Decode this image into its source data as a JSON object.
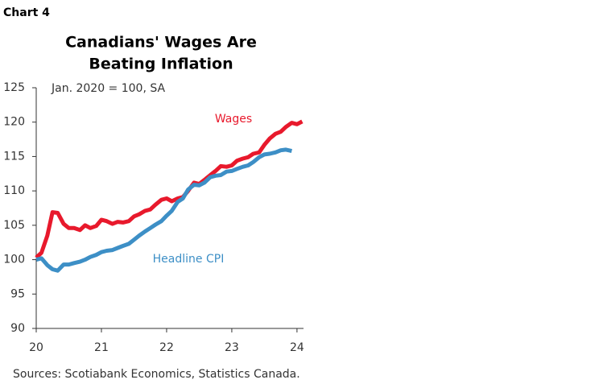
{
  "chart_label": "Chart 4",
  "chart_data": {
    "type": "line",
    "title": [
      "Canadians' Wages Are",
      "Beating Inflation"
    ],
    "subtitle": "Jan. 2020 = 100, SA",
    "source": "Sources: Scotiabank Economics, Statistics Canada.",
    "x": [
      20,
      20.08,
      20.17,
      20.25,
      20.33,
      20.42,
      20.5,
      20.58,
      20.67,
      20.75,
      20.83,
      20.92,
      21,
      21.08,
      21.17,
      21.25,
      21.33,
      21.42,
      21.5,
      21.58,
      21.67,
      21.75,
      21.83,
      21.92,
      22,
      22.08,
      22.17,
      22.25,
      22.33,
      22.42,
      22.5,
      22.58,
      22.67,
      22.75,
      22.83,
      22.92,
      23,
      23.08,
      23.17,
      23.25,
      23.33,
      23.42,
      23.5,
      23.58,
      23.67,
      23.75,
      23.83,
      23.92,
      24,
      24.08
    ],
    "series": [
      {
        "name": "Wages",
        "color": "#e8192c",
        "values": [
          100.3,
          101,
          103.5,
          106.9,
          106.8,
          105.2,
          104.6,
          104.6,
          104.3,
          105,
          104.6,
          104.9,
          105.8,
          105.6,
          105.2,
          105.5,
          105.4,
          105.6,
          106.3,
          106.6,
          107.1,
          107.3,
          108,
          108.7,
          108.9,
          108.5,
          108.9,
          109.1,
          110,
          111.2,
          111,
          111.6,
          112.3,
          112.9,
          113.6,
          113.5,
          113.7,
          114.4,
          114.7,
          114.9,
          115.4,
          115.6,
          116.7,
          117.6,
          118.3,
          118.6,
          119.3,
          119.9,
          119.7,
          120.1
        ]
      },
      {
        "name": "Headline CPI",
        "color": "#3d8fc6",
        "values": [
          100,
          100.2,
          99.2,
          98.6,
          98.4,
          99.3,
          99.3,
          99.5,
          99.7,
          100,
          100.4,
          100.7,
          101.1,
          101.3,
          101.4,
          101.7,
          102,
          102.3,
          102.9,
          103.5,
          104.1,
          104.6,
          105.1,
          105.6,
          106.4,
          107.1,
          108.4,
          108.9,
          110.2,
          110.9,
          110.8,
          111.2,
          112,
          112.2,
          112.3,
          112.8,
          112.9,
          113.2,
          113.5,
          113.7,
          114.2,
          114.9,
          115.3,
          115.4,
          115.6,
          115.9,
          116,
          115.8,
          null,
          null
        ]
      }
    ],
    "xlim": [
      20,
      24.1
    ],
    "xticks": [
      20,
      21,
      22,
      23,
      24
    ],
    "ylim": [
      90,
      125
    ],
    "yticks": [
      90,
      95,
      100,
      105,
      110,
      115,
      120,
      125
    ],
    "grid": false
  }
}
